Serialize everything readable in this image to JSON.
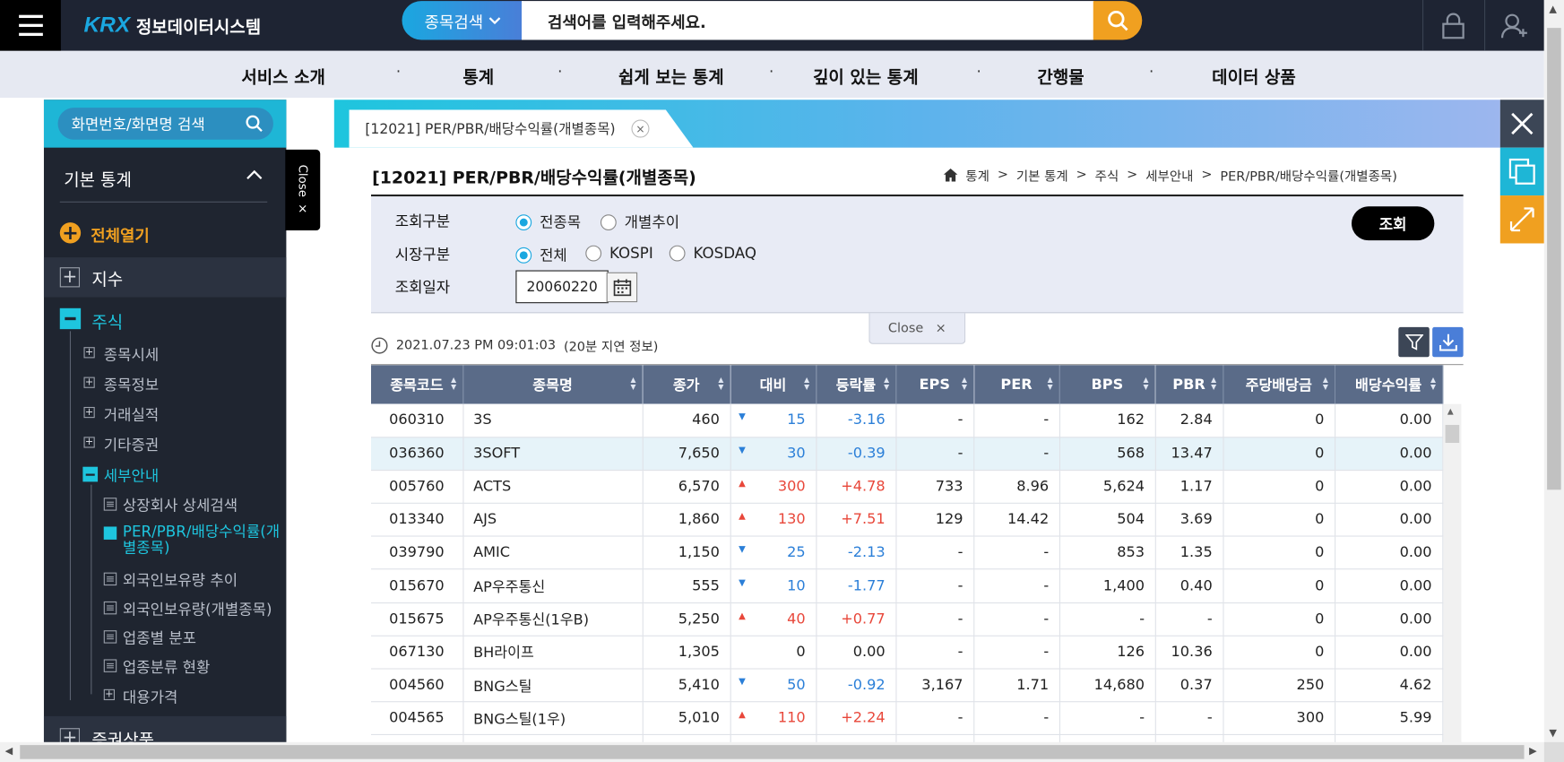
{
  "header": {
    "logo_brand": "KRX",
    "logo_text": "정보데이터시스템",
    "search_category": "종목검색",
    "search_placeholder": "검색어를 입력해주세요."
  },
  "menu": [
    "서비스 소개",
    "통계",
    "쉽게 보는 통계",
    "깊이 있는 통계",
    "간행물",
    "데이터 상품"
  ],
  "sidebar": {
    "search_placeholder": "화면번호/화면명 검색",
    "section_title": "기본 통계",
    "open_all": "전체열기",
    "close_tab": "Close",
    "items": [
      {
        "label": "지수"
      },
      {
        "label": "주식"
      },
      {
        "label": "종목시세"
      },
      {
        "label": "종목정보"
      },
      {
        "label": "거래실적"
      },
      {
        "label": "기타증권"
      },
      {
        "label": "세부안내"
      },
      {
        "label": "상장회사 상세검색"
      },
      {
        "label": "PER/PBR/배당수익률(개별종목)"
      },
      {
        "label": "외국인보유량 추이"
      },
      {
        "label": "외국인보유량(개별종목)"
      },
      {
        "label": "업종별 분포"
      },
      {
        "label": "업종분류 현황"
      },
      {
        "label": "대용가격"
      },
      {
        "label": "증권상품"
      }
    ]
  },
  "tab": {
    "label": "[12021] PER/PBR/배당수익률(개별종목)"
  },
  "page": {
    "title": "[12021] PER/PBR/배당수익률(개별종목)",
    "breadcrumb": [
      "통계",
      "기본 통계",
      "주식",
      "세부안내",
      "PER/PBR/배당수익률(개별종목)"
    ]
  },
  "filter": {
    "query_type_label": "조회구분",
    "query_type_options": [
      "전종목",
      "개별추이"
    ],
    "market_label": "시장구분",
    "market_options": [
      "전체",
      "KOSPI",
      "KOSDAQ"
    ],
    "date_label": "조회일자",
    "date_value": "20060220",
    "query_button": "조회",
    "close_label": "Close"
  },
  "timestamp": "2021.07.23 PM 09:01:03",
  "delay_note": "(20분 지연 정보)",
  "table": {
    "columns": [
      "종목코드",
      "종목명",
      "종가",
      "대비",
      "등락률",
      "EPS",
      "PER",
      "BPS",
      "PBR",
      "주당배당금",
      "배당수익률"
    ],
    "rows": [
      {
        "code": "060310",
        "name": "3S",
        "close": "460",
        "dir": "down",
        "change": "15",
        "rate": "-3.16",
        "eps": "-",
        "per": "-",
        "bps": "162",
        "pbr": "2.84",
        "div": "0",
        "yield": "0.00"
      },
      {
        "code": "036360",
        "name": "3SOFT",
        "close": "7,650",
        "dir": "down",
        "change": "30",
        "rate": "-0.39",
        "eps": "-",
        "per": "-",
        "bps": "568",
        "pbr": "13.47",
        "div": "0",
        "yield": "0.00"
      },
      {
        "code": "005760",
        "name": "ACTS",
        "close": "6,570",
        "dir": "up",
        "change": "300",
        "rate": "+4.78",
        "eps": "733",
        "per": "8.96",
        "bps": "5,624",
        "pbr": "1.17",
        "div": "0",
        "yield": "0.00"
      },
      {
        "code": "013340",
        "name": "AJS",
        "close": "1,860",
        "dir": "up",
        "change": "130",
        "rate": "+7.51",
        "eps": "129",
        "per": "14.42",
        "bps": "504",
        "pbr": "3.69",
        "div": "0",
        "yield": "0.00"
      },
      {
        "code": "039790",
        "name": "AMIC",
        "close": "1,150",
        "dir": "down",
        "change": "25",
        "rate": "-2.13",
        "eps": "-",
        "per": "-",
        "bps": "853",
        "pbr": "1.35",
        "div": "0",
        "yield": "0.00"
      },
      {
        "code": "015670",
        "name": "AP우주통신",
        "close": "555",
        "dir": "down",
        "change": "10",
        "rate": "-1.77",
        "eps": "-",
        "per": "-",
        "bps": "1,400",
        "pbr": "0.40",
        "div": "0",
        "yield": "0.00"
      },
      {
        "code": "015675",
        "name": "AP우주통신(1우B)",
        "close": "5,250",
        "dir": "up",
        "change": "40",
        "rate": "+0.77",
        "eps": "-",
        "per": "-",
        "bps": "-",
        "pbr": "-",
        "div": "0",
        "yield": "0.00"
      },
      {
        "code": "067130",
        "name": "BH라이프",
        "close": "1,305",
        "dir": "flat",
        "change": "0",
        "rate": "0.00",
        "eps": "-",
        "per": "-",
        "bps": "126",
        "pbr": "10.36",
        "div": "0",
        "yield": "0.00"
      },
      {
        "code": "004560",
        "name": "BNG스틸",
        "close": "5,410",
        "dir": "down",
        "change": "50",
        "rate": "-0.92",
        "eps": "3,167",
        "per": "1.71",
        "bps": "14,680",
        "pbr": "0.37",
        "div": "250",
        "yield": "4.62"
      },
      {
        "code": "004565",
        "name": "BNG스틸(1우)",
        "close": "5,010",
        "dir": "up",
        "change": "110",
        "rate": "+2.24",
        "eps": "-",
        "per": "-",
        "bps": "-",
        "pbr": "-",
        "div": "300",
        "yield": "5.99"
      },
      {
        "code": "",
        "name": "",
        "close": "",
        "dir": "flat",
        "change": "",
        "rate": "",
        "eps": "",
        "per": "",
        "bps": "",
        "pbr": "",
        "div": "",
        "yield": ""
      }
    ]
  },
  "colors": {
    "up": "#e8473a",
    "down": "#2b7fd8",
    "accent": "#1aa7e0",
    "nav_active": "#1ec5de",
    "open_all": "#f0a020"
  }
}
